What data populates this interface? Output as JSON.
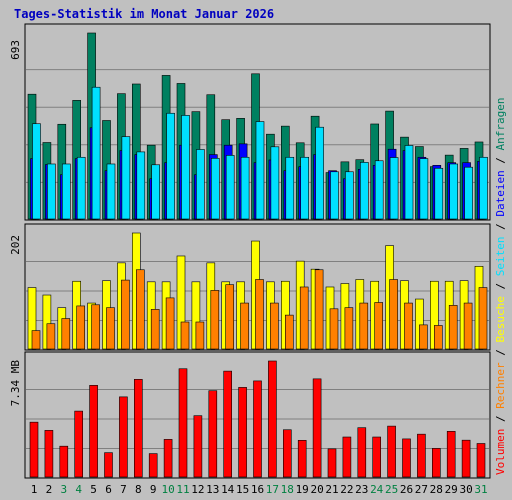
{
  "title": "Tages-Statistik im Monat Januar 2026",
  "colors": {
    "background": "#c0c0c0",
    "title": "#0000c0",
    "requests": "#008060",
    "files": "#0000ff",
    "pages": "#00e0ff",
    "visits": "#ffff00",
    "sites": "#ff8000",
    "volume": "#ff0000",
    "grid": "#808080"
  },
  "chart_data": [
    {
      "type": "bar",
      "panel": "top",
      "max_label": "693",
      "ylim": [
        0,
        693
      ],
      "categories": [
        "1",
        "2",
        "3",
        "4",
        "5",
        "6",
        "7",
        "8",
        "9",
        "10",
        "11",
        "12",
        "13",
        "14",
        "15",
        "16",
        "17",
        "18",
        "19",
        "20",
        "21",
        "22",
        "23",
        "24",
        "25",
        "26",
        "27",
        "28",
        "29",
        "30",
        "31"
      ],
      "series": [
        {
          "name": "Anfragen",
          "values": [
            465,
            285,
            353,
            442,
            693,
            367,
            467,
            503,
            275,
            535,
            505,
            400,
            463,
            370,
            375,
            541,
            316,
            346,
            284,
            383,
            173,
            213,
            221,
            354,
            402,
            305,
            270,
            195,
            238,
            263,
            287
          ]
        },
        {
          "name": "Dateien",
          "values": [
            225,
            203,
            165,
            225,
            340,
            180,
            255,
            240,
            150,
            210,
            275,
            165,
            240,
            275,
            280,
            210,
            220,
            180,
            195,
            240,
            180,
            150,
            185,
            200,
            260,
            255,
            230,
            200,
            210,
            210,
            215
          ]
        },
        {
          "name": "Seiten",
          "values": [
            355,
            205,
            205,
            230,
            491,
            205,
            307,
            250,
            202,
            394,
            386,
            259,
            226,
            237,
            230,
            363,
            269,
            230,
            230,
            342,
            176,
            176,
            211,
            217,
            229,
            274,
            225,
            189,
            205,
            193,
            230
          ]
        }
      ]
    },
    {
      "type": "bar",
      "panel": "middle",
      "max_label": "202",
      "ylim": [
        0,
        202
      ],
      "categories": [
        "1",
        "2",
        "3",
        "4",
        "5",
        "6",
        "7",
        "8",
        "9",
        "10",
        "11",
        "12",
        "13",
        "14",
        "15",
        "16",
        "17",
        "18",
        "19",
        "20",
        "21",
        "22",
        "23",
        "24",
        "25",
        "26",
        "27",
        "28",
        "29",
        "30",
        "31"
      ],
      "series": [
        {
          "name": "Besuche",
          "values": [
            107,
            94,
            72,
            118,
            80,
            119,
            150,
            202,
            117,
            117,
            162,
            117,
            150,
            117,
            117,
            188,
            117,
            118,
            153,
            139,
            108,
            114,
            121,
            118,
            180,
            119,
            87,
            118,
            118,
            119,
            144
          ]
        },
        {
          "name": "Rechner",
          "values": [
            32,
            44,
            53,
            75,
            77,
            72,
            120,
            138,
            69,
            89,
            47,
            47,
            102,
            112,
            80,
            121,
            80,
            59,
            108,
            138,
            70,
            72,
            80,
            81,
            121,
            80,
            42,
            41,
            76,
            80,
            107
          ]
        }
      ]
    },
    {
      "type": "bar",
      "panel": "bottom",
      "max_label": "7.34 MB",
      "ylim": [
        0,
        7.34
      ],
      "categories": [
        "1",
        "2",
        "3",
        "4",
        "5",
        "6",
        "7",
        "8",
        "9",
        "10",
        "11",
        "12",
        "13",
        "14",
        "15",
        "16",
        "17",
        "18",
        "19",
        "20",
        "21",
        "22",
        "23",
        "24",
        "25",
        "26",
        "27",
        "28",
        "29",
        "30",
        "31"
      ],
      "series": [
        {
          "name": "Volumen",
          "values": [
            3.47,
            2.95,
            1.95,
            4.17,
            5.8,
            1.54,
            5.07,
            6.18,
            1.48,
            2.38,
            6.85,
            3.88,
            5.46,
            6.7,
            5.67,
            6.08,
            7.34,
            2.99,
            2.32,
            6.21,
            1.78,
            2.53,
            3.12,
            2.53,
            3.22,
            2.41,
            2.71,
            1.81,
            2.89,
            2.33,
            2.12
          ]
        }
      ]
    }
  ],
  "legend": {
    "part1": "Volumen",
    "sep1": " / ",
    "part2": "Rechner",
    "sep2": " / ",
    "part3": "Besuche",
    "sep3": " / ",
    "part4": "Seiten",
    "sep4": " / ",
    "part5": "Dateien",
    "sep5": " / ",
    "part6": "Anfragen"
  },
  "weekend_days": [
    "3",
    "4",
    "10",
    "11",
    "17",
    "18",
    "24",
    "25",
    "31"
  ],
  "day_colors": {
    "weekday": "#000000",
    "weekend": "#008040"
  }
}
